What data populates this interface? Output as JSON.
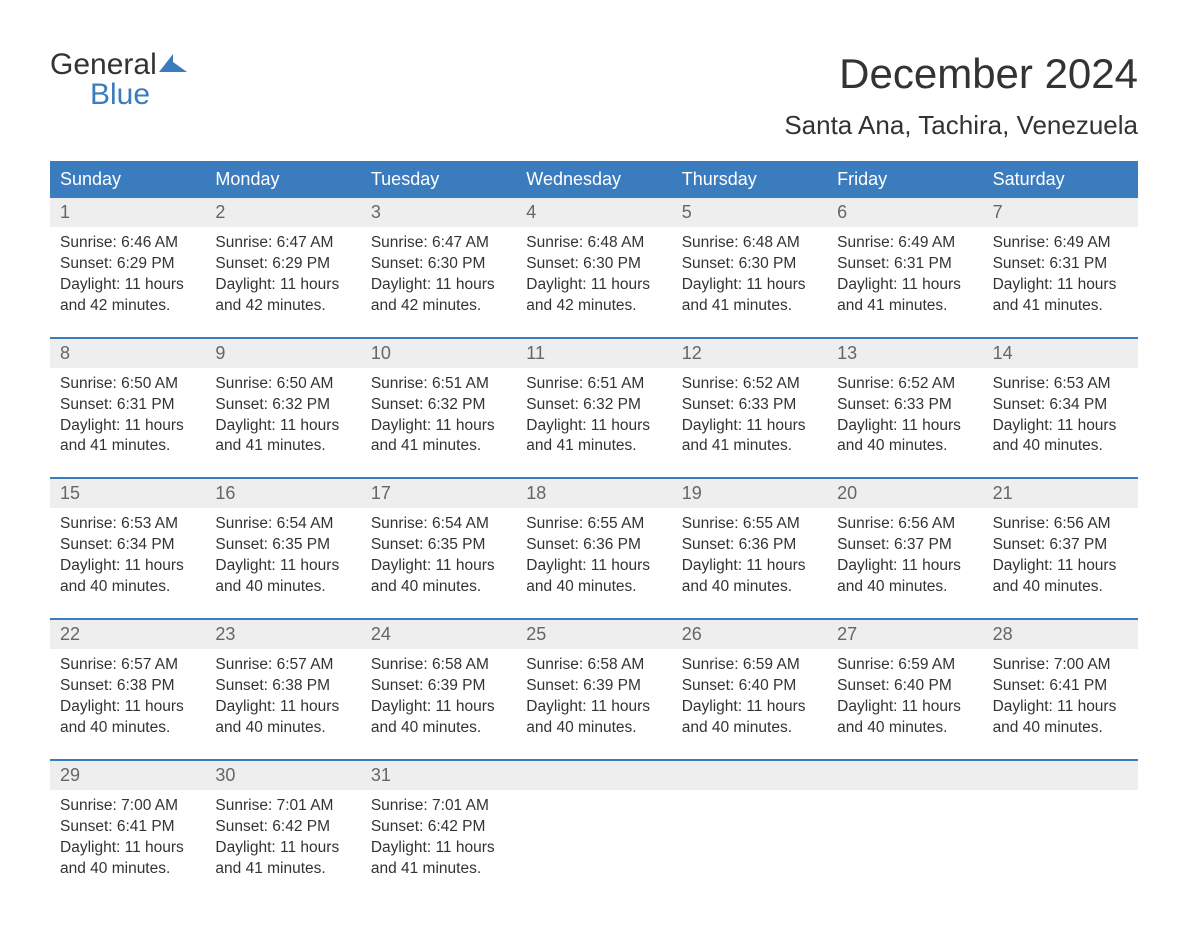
{
  "logo": {
    "text_general": "General",
    "text_blue": "Blue",
    "icon_color": "#3b7cbf"
  },
  "title": "December 2024",
  "location": "Santa Ana, Tachira, Venezuela",
  "colors": {
    "header_bg": "#3b7cbf",
    "header_text": "#ffffff",
    "day_number_bg": "#eeeeee",
    "day_number_text": "#666666",
    "body_text": "#333333",
    "row_border": "#3b7cbf"
  },
  "typography": {
    "title_size": 42,
    "location_size": 26,
    "header_size": 18,
    "day_number_size": 18,
    "content_size": 15.5
  },
  "day_labels": [
    "Sunday",
    "Monday",
    "Tuesday",
    "Wednesday",
    "Thursday",
    "Friday",
    "Saturday"
  ],
  "weeks": [
    [
      {
        "day": "1",
        "sunrise": "Sunrise: 6:46 AM",
        "sunset": "Sunset: 6:29 PM",
        "daylight1": "Daylight: 11 hours",
        "daylight2": "and 42 minutes."
      },
      {
        "day": "2",
        "sunrise": "Sunrise: 6:47 AM",
        "sunset": "Sunset: 6:29 PM",
        "daylight1": "Daylight: 11 hours",
        "daylight2": "and 42 minutes."
      },
      {
        "day": "3",
        "sunrise": "Sunrise: 6:47 AM",
        "sunset": "Sunset: 6:30 PM",
        "daylight1": "Daylight: 11 hours",
        "daylight2": "and 42 minutes."
      },
      {
        "day": "4",
        "sunrise": "Sunrise: 6:48 AM",
        "sunset": "Sunset: 6:30 PM",
        "daylight1": "Daylight: 11 hours",
        "daylight2": "and 42 minutes."
      },
      {
        "day": "5",
        "sunrise": "Sunrise: 6:48 AM",
        "sunset": "Sunset: 6:30 PM",
        "daylight1": "Daylight: 11 hours",
        "daylight2": "and 41 minutes."
      },
      {
        "day": "6",
        "sunrise": "Sunrise: 6:49 AM",
        "sunset": "Sunset: 6:31 PM",
        "daylight1": "Daylight: 11 hours",
        "daylight2": "and 41 minutes."
      },
      {
        "day": "7",
        "sunrise": "Sunrise: 6:49 AM",
        "sunset": "Sunset: 6:31 PM",
        "daylight1": "Daylight: 11 hours",
        "daylight2": "and 41 minutes."
      }
    ],
    [
      {
        "day": "8",
        "sunrise": "Sunrise: 6:50 AM",
        "sunset": "Sunset: 6:31 PM",
        "daylight1": "Daylight: 11 hours",
        "daylight2": "and 41 minutes."
      },
      {
        "day": "9",
        "sunrise": "Sunrise: 6:50 AM",
        "sunset": "Sunset: 6:32 PM",
        "daylight1": "Daylight: 11 hours",
        "daylight2": "and 41 minutes."
      },
      {
        "day": "10",
        "sunrise": "Sunrise: 6:51 AM",
        "sunset": "Sunset: 6:32 PM",
        "daylight1": "Daylight: 11 hours",
        "daylight2": "and 41 minutes."
      },
      {
        "day": "11",
        "sunrise": "Sunrise: 6:51 AM",
        "sunset": "Sunset: 6:32 PM",
        "daylight1": "Daylight: 11 hours",
        "daylight2": "and 41 minutes."
      },
      {
        "day": "12",
        "sunrise": "Sunrise: 6:52 AM",
        "sunset": "Sunset: 6:33 PM",
        "daylight1": "Daylight: 11 hours",
        "daylight2": "and 41 minutes."
      },
      {
        "day": "13",
        "sunrise": "Sunrise: 6:52 AM",
        "sunset": "Sunset: 6:33 PM",
        "daylight1": "Daylight: 11 hours",
        "daylight2": "and 40 minutes."
      },
      {
        "day": "14",
        "sunrise": "Sunrise: 6:53 AM",
        "sunset": "Sunset: 6:34 PM",
        "daylight1": "Daylight: 11 hours",
        "daylight2": "and 40 minutes."
      }
    ],
    [
      {
        "day": "15",
        "sunrise": "Sunrise: 6:53 AM",
        "sunset": "Sunset: 6:34 PM",
        "daylight1": "Daylight: 11 hours",
        "daylight2": "and 40 minutes."
      },
      {
        "day": "16",
        "sunrise": "Sunrise: 6:54 AM",
        "sunset": "Sunset: 6:35 PM",
        "daylight1": "Daylight: 11 hours",
        "daylight2": "and 40 minutes."
      },
      {
        "day": "17",
        "sunrise": "Sunrise: 6:54 AM",
        "sunset": "Sunset: 6:35 PM",
        "daylight1": "Daylight: 11 hours",
        "daylight2": "and 40 minutes."
      },
      {
        "day": "18",
        "sunrise": "Sunrise: 6:55 AM",
        "sunset": "Sunset: 6:36 PM",
        "daylight1": "Daylight: 11 hours",
        "daylight2": "and 40 minutes."
      },
      {
        "day": "19",
        "sunrise": "Sunrise: 6:55 AM",
        "sunset": "Sunset: 6:36 PM",
        "daylight1": "Daylight: 11 hours",
        "daylight2": "and 40 minutes."
      },
      {
        "day": "20",
        "sunrise": "Sunrise: 6:56 AM",
        "sunset": "Sunset: 6:37 PM",
        "daylight1": "Daylight: 11 hours",
        "daylight2": "and 40 minutes."
      },
      {
        "day": "21",
        "sunrise": "Sunrise: 6:56 AM",
        "sunset": "Sunset: 6:37 PM",
        "daylight1": "Daylight: 11 hours",
        "daylight2": "and 40 minutes."
      }
    ],
    [
      {
        "day": "22",
        "sunrise": "Sunrise: 6:57 AM",
        "sunset": "Sunset: 6:38 PM",
        "daylight1": "Daylight: 11 hours",
        "daylight2": "and 40 minutes."
      },
      {
        "day": "23",
        "sunrise": "Sunrise: 6:57 AM",
        "sunset": "Sunset: 6:38 PM",
        "daylight1": "Daylight: 11 hours",
        "daylight2": "and 40 minutes."
      },
      {
        "day": "24",
        "sunrise": "Sunrise: 6:58 AM",
        "sunset": "Sunset: 6:39 PM",
        "daylight1": "Daylight: 11 hours",
        "daylight2": "and 40 minutes."
      },
      {
        "day": "25",
        "sunrise": "Sunrise: 6:58 AM",
        "sunset": "Sunset: 6:39 PM",
        "daylight1": "Daylight: 11 hours",
        "daylight2": "and 40 minutes."
      },
      {
        "day": "26",
        "sunrise": "Sunrise: 6:59 AM",
        "sunset": "Sunset: 6:40 PM",
        "daylight1": "Daylight: 11 hours",
        "daylight2": "and 40 minutes."
      },
      {
        "day": "27",
        "sunrise": "Sunrise: 6:59 AM",
        "sunset": "Sunset: 6:40 PM",
        "daylight1": "Daylight: 11 hours",
        "daylight2": "and 40 minutes."
      },
      {
        "day": "28",
        "sunrise": "Sunrise: 7:00 AM",
        "sunset": "Sunset: 6:41 PM",
        "daylight1": "Daylight: 11 hours",
        "daylight2": "and 40 minutes."
      }
    ],
    [
      {
        "day": "29",
        "sunrise": "Sunrise: 7:00 AM",
        "sunset": "Sunset: 6:41 PM",
        "daylight1": "Daylight: 11 hours",
        "daylight2": "and 40 minutes."
      },
      {
        "day": "30",
        "sunrise": "Sunrise: 7:01 AM",
        "sunset": "Sunset: 6:42 PM",
        "daylight1": "Daylight: 11 hours",
        "daylight2": "and 41 minutes."
      },
      {
        "day": "31",
        "sunrise": "Sunrise: 7:01 AM",
        "sunset": "Sunset: 6:42 PM",
        "daylight1": "Daylight: 11 hours",
        "daylight2": "and 41 minutes."
      },
      {
        "empty": true
      },
      {
        "empty": true
      },
      {
        "empty": true
      },
      {
        "empty": true
      }
    ]
  ]
}
